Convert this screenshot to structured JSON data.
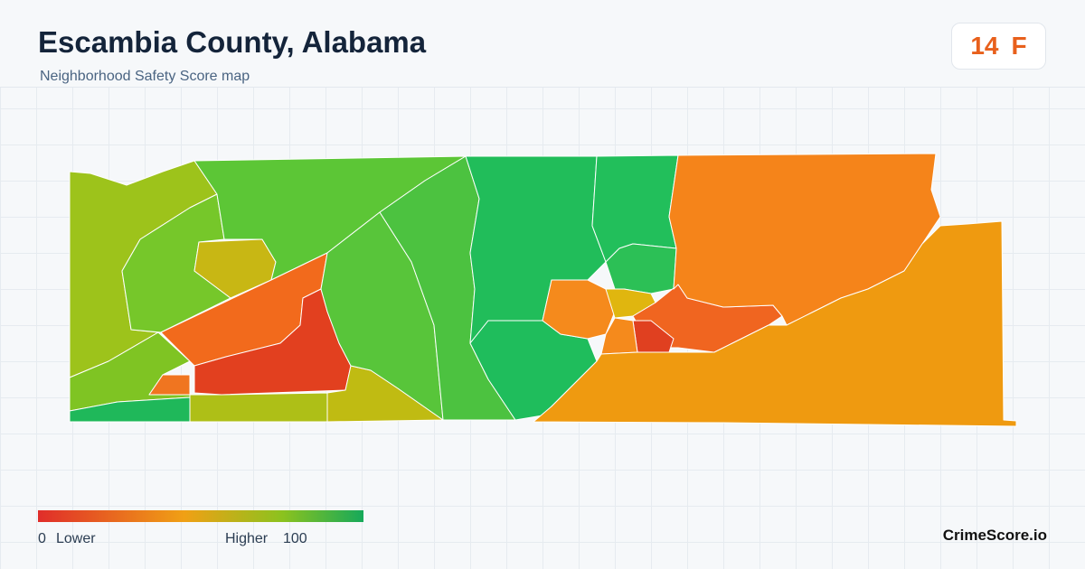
{
  "header": {
    "title": "Escambia County, Alabama",
    "subtitle": "Neighborhood Safety Score map"
  },
  "score": {
    "value": "14",
    "grade": "F"
  },
  "legend": {
    "min": "0",
    "min_label": "Lower",
    "max_label": "Higher",
    "max": "100"
  },
  "brand": "CrimeScore.io"
}
